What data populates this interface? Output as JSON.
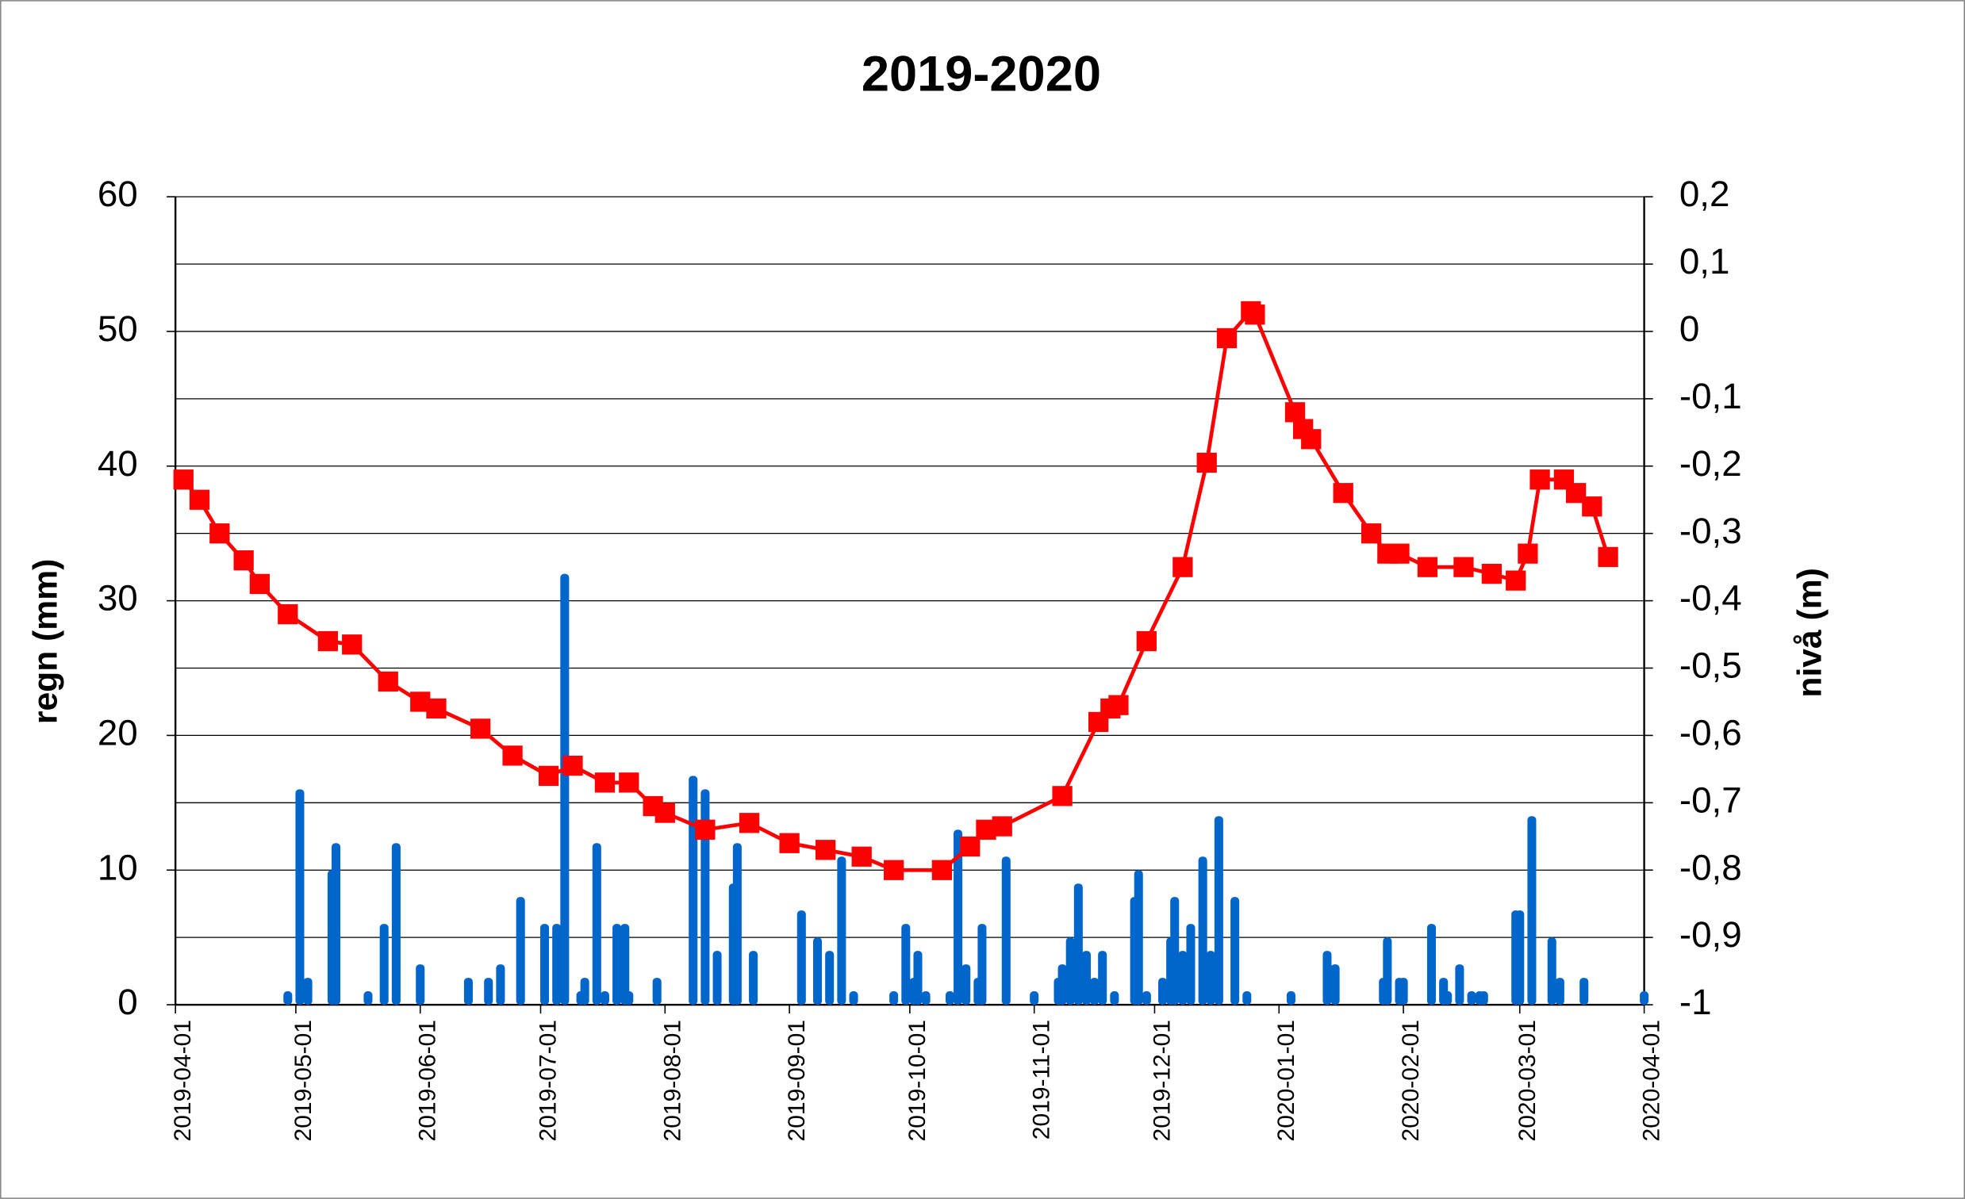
{
  "chart_data": {
    "type": "bar-line",
    "title": "2019-2020",
    "ylabel": "regn (mm)",
    "y2label": "nivå (m)",
    "xticks": [
      "2019-04-01",
      "2019-05-01",
      "2019-06-01",
      "2019-07-01",
      "2019-08-01",
      "2019-09-01",
      "2019-10-01",
      "2019-11-01",
      "2019-12-01",
      "2020-01-01",
      "2020-02-01",
      "2020-03-01",
      "2020-04-01"
    ],
    "ylim": [
      0,
      60
    ],
    "yticks": [
      0,
      10,
      20,
      30,
      40,
      50,
      60
    ],
    "y2lim": [
      -1,
      0.2
    ],
    "y2ticks": [
      -1,
      {
        "value": -0.9,
        "label": "-0,9"
      },
      {
        "value": -0.8,
        "label": "-0,8"
      },
      {
        "value": -0.7,
        "label": "-0,7"
      },
      {
        "value": -0.6,
        "label": "-0,6"
      },
      {
        "value": -0.5,
        "label": "-0,5"
      },
      {
        "value": -0.4,
        "label": "-0,4"
      },
      {
        "value": -0.3,
        "label": "-0,3"
      },
      {
        "value": -0.2,
        "label": "-0,2"
      },
      {
        "value": -0.1,
        "label": "-0,1"
      },
      0,
      {
        "value": 0.1,
        "label": "0,1"
      },
      {
        "value": 0.2,
        "label": "0,2"
      }
    ],
    "grid": true,
    "series": [
      {
        "type": "bar",
        "color": "#0066cc",
        "x": [
          "2019-04-29",
          "2019-05-02",
          "2019-05-04",
          "2019-05-10",
          "2019-05-11",
          "2019-05-19",
          "2019-05-23",
          "2019-05-26",
          "2019-06-01",
          "2019-06-13",
          "2019-06-18",
          "2019-06-21",
          "2019-06-26",
          "2019-07-02",
          "2019-07-05",
          "2019-07-07",
          "2019-07-11",
          "2019-07-12",
          "2019-07-15",
          "2019-07-17",
          "2019-07-20",
          "2019-07-22",
          "2019-07-23",
          "2019-07-30",
          "2019-08-08",
          "2019-08-11",
          "2019-08-14",
          "2019-08-18",
          "2019-08-19",
          "2019-08-23",
          "2019-09-04",
          "2019-09-08",
          "2019-09-11",
          "2019-09-14",
          "2019-09-17",
          "2019-09-27",
          "2019-09-30",
          "2019-10-02",
          "2019-10-03",
          "2019-10-05",
          "2019-10-11",
          "2019-10-13",
          "2019-10-15",
          "2019-10-18",
          "2019-10-19",
          "2019-10-25",
          "2019-11-01",
          "2019-11-07",
          "2019-11-08",
          "2019-11-10",
          "2019-11-12",
          "2019-11-14",
          "2019-11-16",
          "2019-11-18",
          "2019-11-21",
          "2019-11-26",
          "2019-11-27",
          "2019-11-29",
          "2019-12-03",
          "2019-12-05",
          "2019-12-06",
          "2019-12-08",
          "2019-12-10",
          "2019-12-13",
          "2019-12-15",
          "2019-12-17",
          "2019-12-21",
          "2019-12-24",
          "2020-01-04",
          "2020-01-13",
          "2020-01-15",
          "2020-01-27",
          "2020-01-28",
          "2020-01-31",
          "2020-02-01",
          "2020-02-08",
          "2020-02-11",
          "2020-02-12",
          "2020-02-15",
          "2020-02-18",
          "2020-02-20",
          "2020-02-21",
          "2020-02-29",
          "2020-03-01",
          "2020-03-04",
          "2020-03-09",
          "2020-03-11",
          "2020-03-17",
          "2020-04-01"
        ],
        "values": [
          1,
          16,
          2,
          10,
          12,
          1,
          6,
          12,
          3,
          2,
          2,
          3,
          8,
          6,
          6,
          32,
          1,
          2,
          12,
          1,
          6,
          6,
          1,
          2,
          17,
          16,
          4,
          9,
          12,
          4,
          7,
          5,
          4,
          11,
          1,
          1,
          6,
          2,
          4,
          1,
          1,
          13,
          3,
          2,
          6,
          11,
          1,
          2,
          3,
          5,
          9,
          4,
          2,
          4,
          1,
          8,
          10,
          1,
          2,
          5,
          8,
          4,
          6,
          11,
          4,
          14,
          8,
          1,
          1,
          4,
          3,
          2,
          5,
          2,
          2,
          6,
          2,
          1,
          3,
          1,
          1,
          1,
          7,
          7,
          14,
          5,
          2,
          2,
          1
        ]
      },
      {
        "type": "line",
        "axis": "y2",
        "color": "#ff0000",
        "x": [
          "2019-04-03",
          "2019-04-07",
          "2019-04-12",
          "2019-04-18",
          "2019-04-22",
          "2019-04-29",
          "2019-05-09",
          "2019-05-15",
          "2019-05-24",
          "2019-06-01",
          "2019-06-05",
          "2019-06-16",
          "2019-06-24",
          "2019-07-03",
          "2019-07-09",
          "2019-07-17",
          "2019-07-23",
          "2019-07-29",
          "2019-08-01",
          "2019-08-11",
          "2019-08-22",
          "2019-09-01",
          "2019-09-10",
          "2019-09-19",
          "2019-09-27",
          "2019-10-09",
          "2019-10-16",
          "2019-10-20",
          "2019-10-24",
          "2019-11-08",
          "2019-11-17",
          "2019-11-20",
          "2019-11-22",
          "2019-11-29",
          "2019-12-08",
          "2019-12-14",
          "2019-12-19",
          "2019-12-25",
          "2019-12-26",
          "2020-01-05",
          "2020-01-07",
          "2020-01-09",
          "2020-01-17",
          "2020-01-24",
          "2020-01-28",
          "2020-01-31",
          "2020-02-07",
          "2020-02-16",
          "2020-02-23",
          "2020-02-29",
          "2020-03-03",
          "2020-03-06",
          "2020-03-12",
          "2020-03-15",
          "2020-03-19",
          "2020-03-23"
        ],
        "values": [
          -0.22,
          -0.25,
          -0.3,
          -0.34,
          -0.375,
          -0.42,
          -0.46,
          -0.465,
          -0.52,
          -0.55,
          -0.56,
          -0.59,
          -0.63,
          -0.66,
          -0.645,
          -0.67,
          -0.67,
          -0.705,
          -0.715,
          -0.74,
          -0.73,
          -0.76,
          -0.77,
          -0.78,
          -0.8,
          -0.8,
          -0.765,
          -0.74,
          -0.735,
          -0.69,
          -0.58,
          -0.56,
          -0.555,
          -0.46,
          -0.35,
          -0.195,
          -0.01,
          0.03,
          0.025,
          -0.12,
          -0.145,
          -0.16,
          -0.24,
          -0.3,
          -0.33,
          -0.33,
          -0.35,
          -0.35,
          -0.36,
          -0.37,
          -0.33,
          -0.22,
          -0.22,
          -0.24,
          -0.26,
          -0.335
        ]
      }
    ]
  }
}
